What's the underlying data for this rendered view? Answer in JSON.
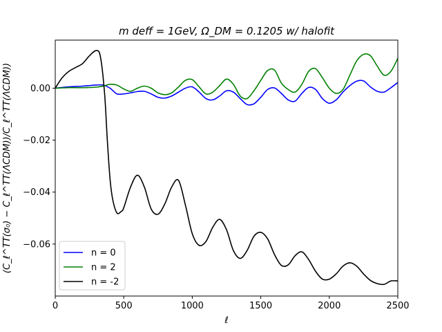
{
  "chart_data": {
    "type": "line",
    "title": "m deff = 1GeV, Ω_DM = 0.1205 w/ halofit",
    "xlabel": "ℓ",
    "ylabel": "(C_ℓ^TT(σ₀) − C_ℓ^TT(ΛCDM))/C_ℓ^TT(ΛCDM))",
    "xlim": [
      0,
      2500
    ],
    "ylim": [
      -0.08,
      0.0185
    ],
    "xticks": [
      0,
      500,
      1000,
      1500,
      2000,
      2500
    ],
    "xtick_labels": [
      "0",
      "500",
      "1000",
      "1500",
      "2000",
      "2500"
    ],
    "yticks": [
      0.0,
      -0.02,
      -0.04,
      -0.06
    ],
    "ytick_labels": [
      "0.00",
      "−0.02",
      "−0.04",
      "−0.06"
    ],
    "grid": false,
    "legend_position": "lower-left",
    "series": [
      {
        "name": "n = 0",
        "color": "#0000ff",
        "x": [
          0,
          100,
          200,
          300,
          350,
          400,
          450,
          500,
          550,
          600,
          650,
          700,
          750,
          800,
          850,
          900,
          950,
          1000,
          1050,
          1100,
          1150,
          1200,
          1250,
          1300,
          1350,
          1400,
          1450,
          1500,
          1550,
          1600,
          1650,
          1700,
          1750,
          1800,
          1850,
          1900,
          1950,
          2000,
          2050,
          2100,
          2150,
          2200,
          2250,
          2300,
          2350,
          2400,
          2450,
          2500
        ],
        "y": [
          0.0,
          0.0005,
          0.0008,
          0.0012,
          0.0012,
          0.0,
          -0.0022,
          -0.0022,
          -0.0018,
          -0.0013,
          -0.0012,
          -0.0022,
          -0.0035,
          -0.0038,
          -0.003,
          -0.0015,
          0.0,
          0.0005,
          -0.0015,
          -0.004,
          -0.0045,
          -0.003,
          -0.001,
          -0.0015,
          -0.004,
          -0.0063,
          -0.006,
          -0.0035,
          -0.0005,
          0.0001,
          -0.002,
          -0.0045,
          -0.005,
          -0.002,
          0.0003,
          -0.0005,
          -0.004,
          -0.0058,
          -0.0045,
          -0.0015,
          0.001,
          0.0027,
          0.0028,
          0.0005,
          -0.0012,
          -0.0015,
          0.0002,
          0.0022
        ]
      },
      {
        "name": "n = 2",
        "color": "#008000",
        "x": [
          0,
          100,
          200,
          300,
          350,
          400,
          450,
          500,
          550,
          600,
          650,
          700,
          750,
          800,
          850,
          900,
          950,
          1000,
          1050,
          1100,
          1150,
          1200,
          1250,
          1300,
          1350,
          1400,
          1450,
          1500,
          1550,
          1600,
          1650,
          1700,
          1750,
          1800,
          1850,
          1900,
          1950,
          2000,
          2050,
          2100,
          2150,
          2200,
          2250,
          2300,
          2350,
          2400,
          2450,
          2500
        ],
        "y": [
          0.0,
          0.0002,
          0.0002,
          0.0004,
          0.0008,
          0.0015,
          0.0012,
          -0.0003,
          -0.0012,
          0.0,
          0.0008,
          0.0,
          -0.0018,
          -0.0025,
          -0.0018,
          0.0005,
          0.003,
          0.0033,
          0.0005,
          -0.0022,
          -0.0015,
          0.001,
          0.0035,
          0.0015,
          -0.003,
          -0.004,
          -0.001,
          0.003,
          0.0068,
          0.007,
          0.002,
          -0.0005,
          -0.0015,
          0.0015,
          0.0065,
          0.0075,
          0.004,
          0.0,
          -0.002,
          -0.0005,
          0.005,
          0.0105,
          0.013,
          0.0125,
          0.0085,
          0.005,
          0.0065,
          0.0115
        ]
      },
      {
        "name": "n = -2",
        "color": "#000000",
        "x": [
          0,
          50,
          100,
          150,
          200,
          250,
          300,
          330,
          360,
          380,
          400,
          420,
          450,
          480,
          500,
          550,
          600,
          650,
          700,
          750,
          800,
          850,
          900,
          950,
          1000,
          1050,
          1100,
          1150,
          1200,
          1250,
          1300,
          1350,
          1400,
          1450,
          1500,
          1550,
          1600,
          1650,
          1700,
          1750,
          1800,
          1850,
          1900,
          1950,
          2000,
          2050,
          2100,
          2150,
          2200,
          2250,
          2300,
          2350,
          2400,
          2450,
          2500
        ],
        "y": [
          0.0,
          0.004,
          0.0065,
          0.008,
          0.0095,
          0.0125,
          0.0145,
          0.012,
          -0.002,
          -0.02,
          -0.035,
          -0.043,
          -0.048,
          -0.0475,
          -0.046,
          -0.038,
          -0.0335,
          -0.038,
          -0.0465,
          -0.0485,
          -0.0445,
          -0.038,
          -0.0355,
          -0.045,
          -0.056,
          -0.0605,
          -0.059,
          -0.0535,
          -0.0505,
          -0.0545,
          -0.0625,
          -0.0655,
          -0.0625,
          -0.057,
          -0.0555,
          -0.058,
          -0.064,
          -0.0682,
          -0.068,
          -0.0645,
          -0.063,
          -0.066,
          -0.0705,
          -0.0735,
          -0.0735,
          -0.0715,
          -0.0685,
          -0.0672,
          -0.0685,
          -0.0715,
          -0.074,
          -0.0752,
          -0.0755,
          -0.0742,
          -0.0742
        ]
      }
    ]
  }
}
